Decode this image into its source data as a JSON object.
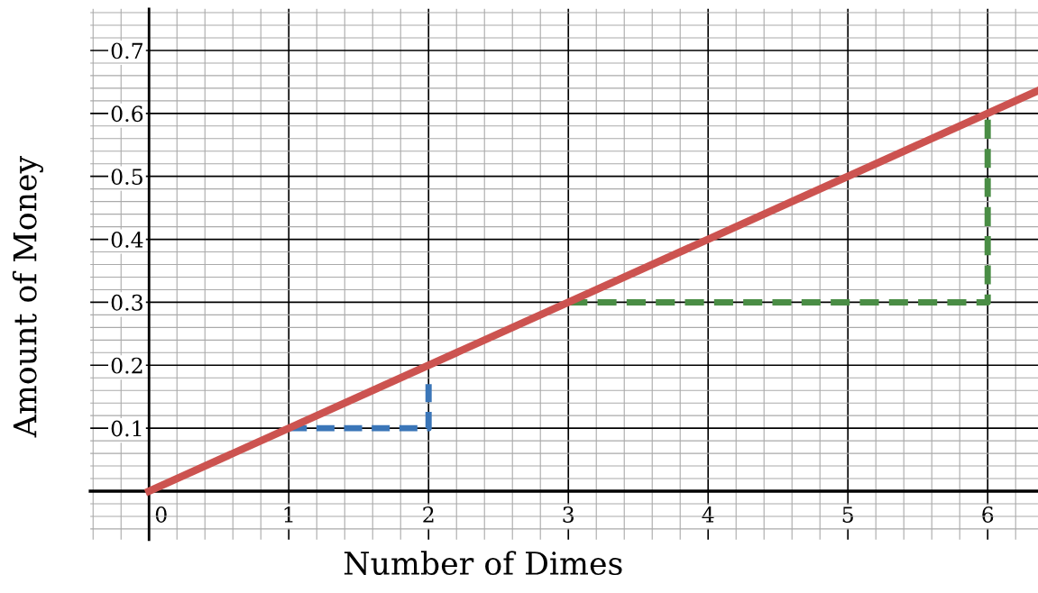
{
  "chart_data": {
    "type": "line",
    "xlabel": "Number of Dimes",
    "ylabel": "Amount of Money",
    "xlim": [
      -0.42,
      6.36
    ],
    "ylim": [
      -0.077,
      0.766
    ],
    "xticks": [
      0,
      1,
      2,
      3,
      4,
      5,
      6
    ],
    "yticks": [
      0.1,
      0.2,
      0.3,
      0.4,
      0.5,
      0.6,
      0.7
    ],
    "grid": true,
    "marker": "none",
    "series": [
      {
        "color": "#cc5350",
        "line_style": "solid",
        "x": [
          0,
          6.36
        ],
        "values": [
          0,
          0.636
        ]
      },
      {
        "color": "#3b76b8",
        "line_style": "dashed",
        "x": [
          1,
          2,
          2
        ],
        "values": [
          0.1,
          0.1,
          0.17
        ]
      },
      {
        "color": "#4a8d45",
        "line_style": "dashed",
        "x": [
          3,
          6,
          6
        ],
        "values": [
          0.3,
          0.3,
          0.59
        ]
      }
    ]
  }
}
